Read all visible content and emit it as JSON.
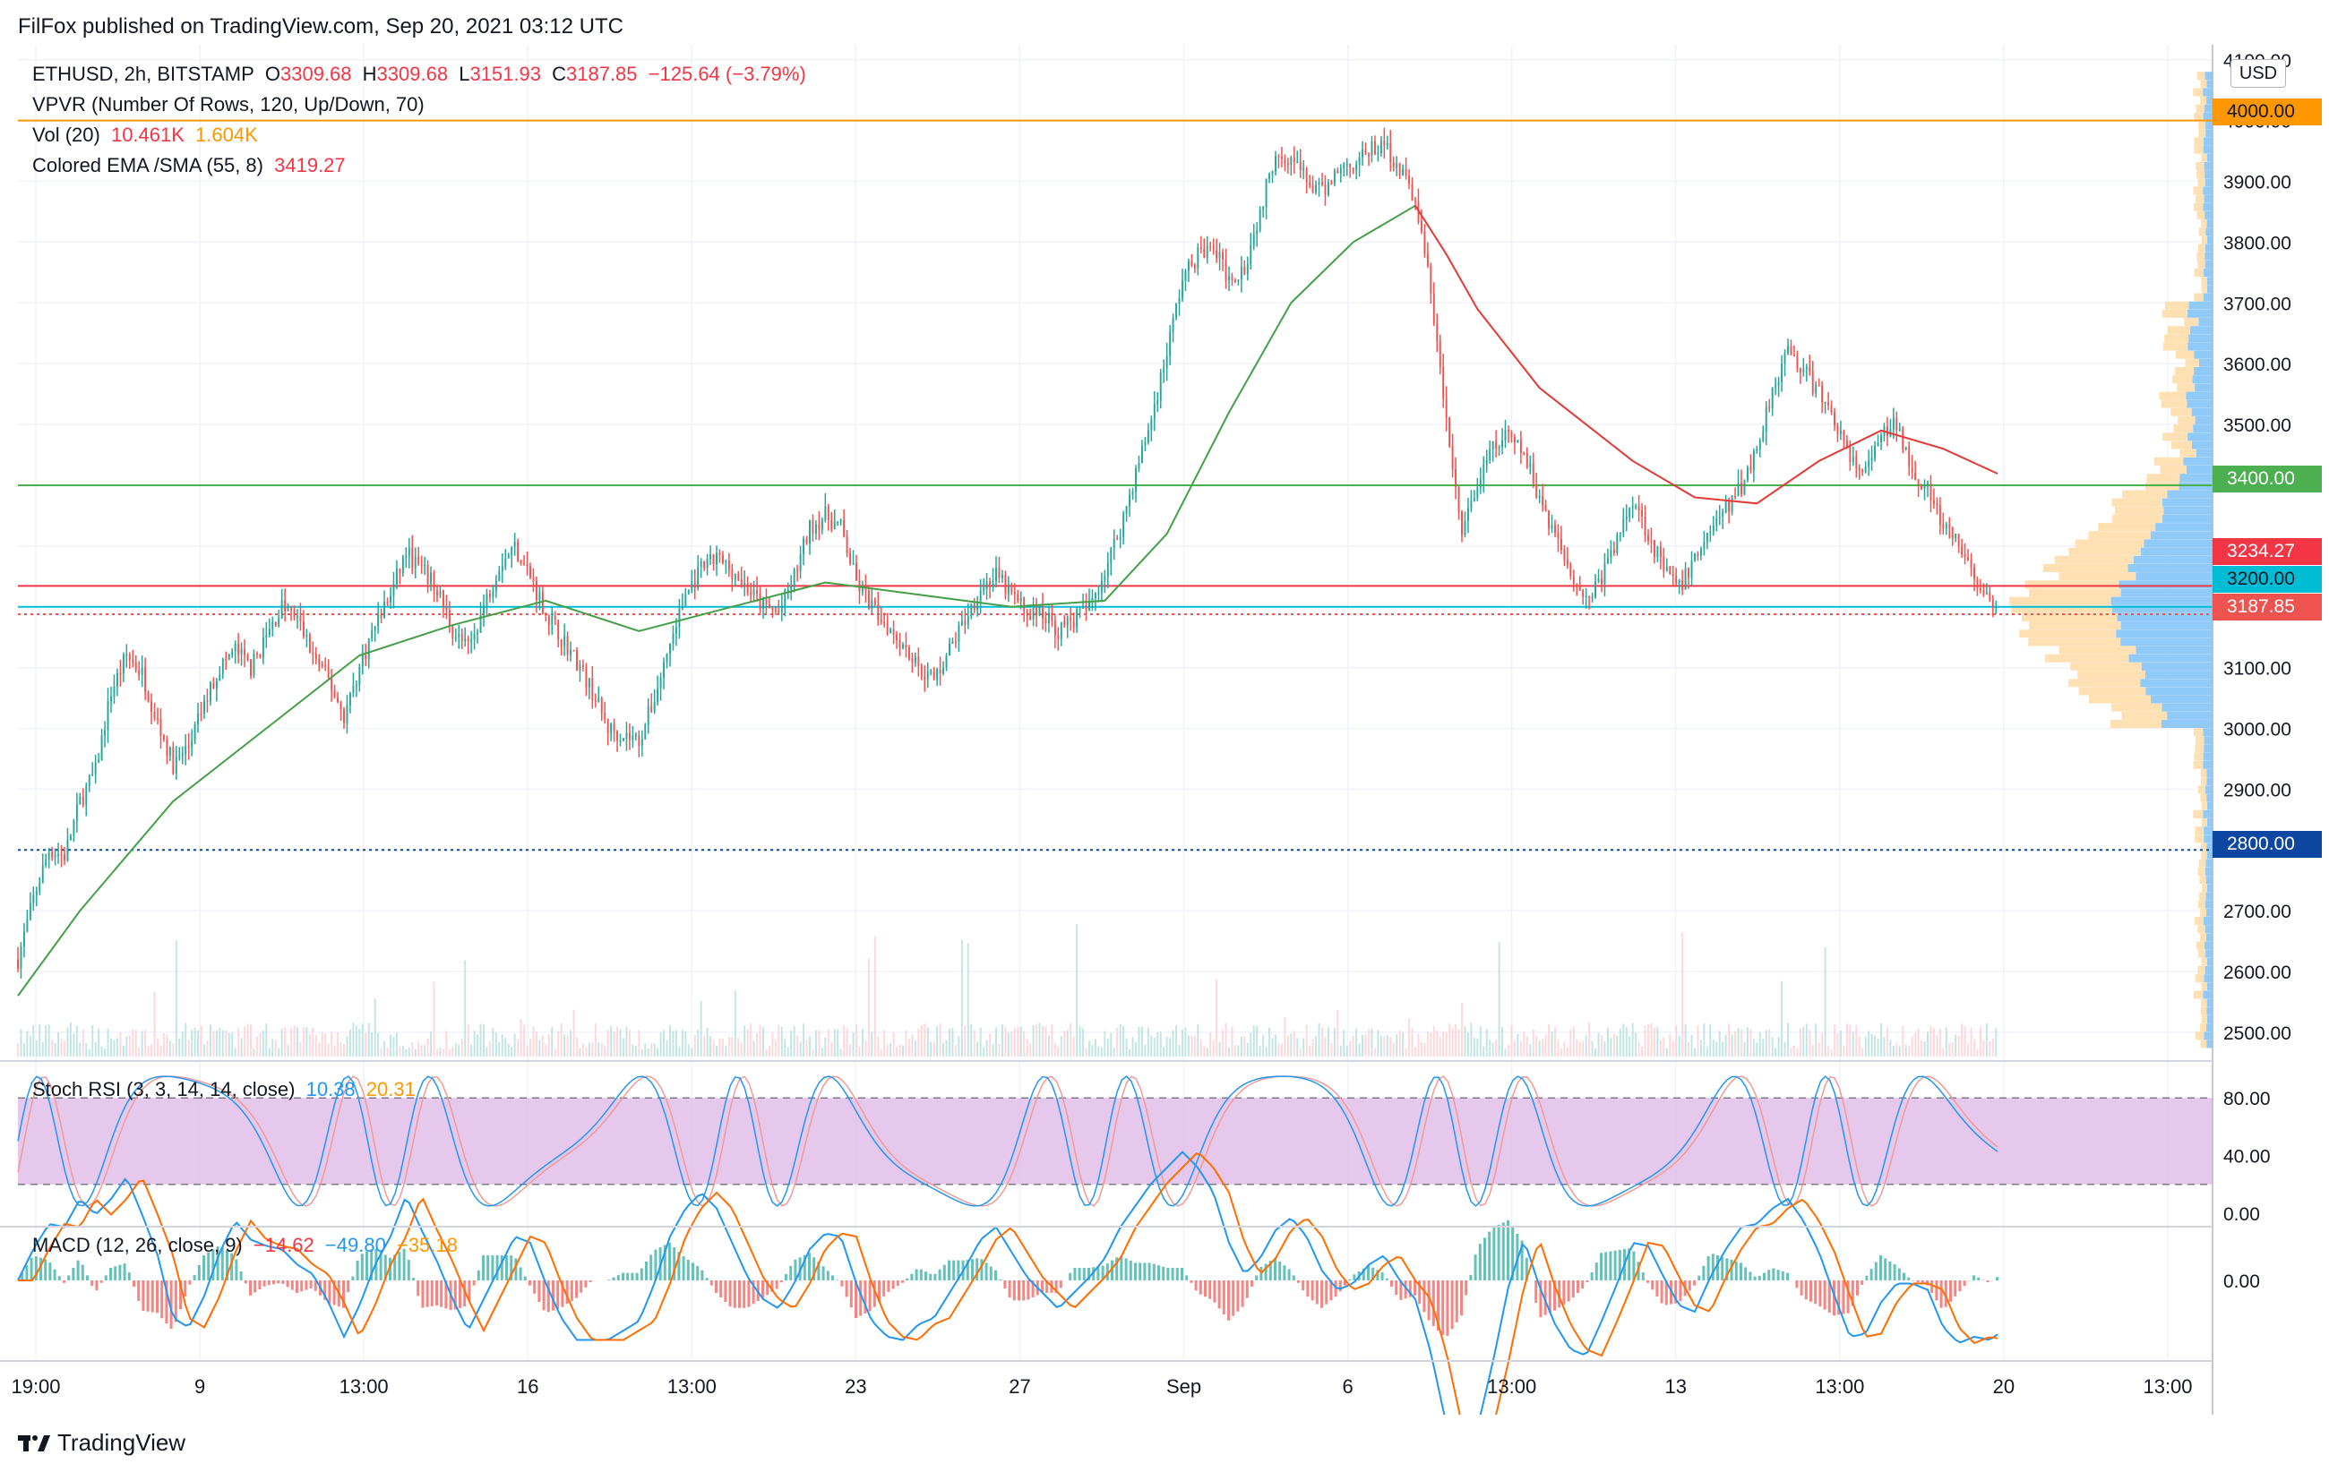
{
  "header": {
    "published": "FilFox published on TradingView.com, Sep 20, 2021 03:12 UTC"
  },
  "legend": {
    "symbol": "ETHUSD, 2h, BITSTAMP",
    "o_label": "O",
    "o_value": "3309.68",
    "h_label": "H",
    "h_value": "3309.68",
    "l_label": "L",
    "l_value": "3151.93",
    "c_label": "C",
    "c_value": "3187.85",
    "change": "−125.64 (−3.79%)",
    "vpvr": "VPVR (Number Of Rows, 120, Up/Down, 70)",
    "vol_label": "Vol (20)",
    "vol_value": "10.461K",
    "vol_ma": "1.604K",
    "ema_label": "Colored EMA /SMA (55, 8)",
    "ema_value": "3419.27",
    "stoch_label": "Stoch RSI (3, 3, 14, 14, close)",
    "stoch_k": "10.38",
    "stoch_d": "20.31",
    "macd_label": "MACD (12, 26, close, 9)",
    "macd_hist": "−14.62",
    "macd_line": "−49.80",
    "macd_signal": "−35.18"
  },
  "badges": {
    "usd": "USD",
    "level_4000": "4000.00",
    "level_3400": "3400.00",
    "sma_price": "3234.27",
    "level_3200": "3200.00",
    "last_price": "3187.85",
    "level_2800": "2800.00"
  },
  "footer": {
    "brand": "TradingView"
  },
  "colors": {
    "up": "#26a69a",
    "down": "#ef5350",
    "level_orange": "#ff9800",
    "level_green": "#4caf50",
    "level_red": "#f23645",
    "level_teal": "#00bcd4",
    "level_navy": "#0d47a1",
    "sma_green": "#43a047",
    "sma_red": "#e53935",
    "stoch_fill": "#e1bee7",
    "stoch_k": "#2196f3",
    "stoch_d": "#ef9a9a",
    "macd": "#2196f3",
    "signal": "#ff6d00"
  },
  "chart_data": {
    "type": "candlestick",
    "symbol": "ETHUSD",
    "timeframe": "2h",
    "exchange": "BITSTAMP",
    "price_axis": {
      "ticks": [
        "4100.00",
        "4000.00",
        "3900.00",
        "3800.00",
        "3700.00",
        "3600.00",
        "3500.00",
        "3400.00",
        "3300.00",
        "3200.00",
        "3100.00",
        "3000.00",
        "2900.00",
        "2800.00",
        "2700.00",
        "2600.00",
        "2500.00"
      ],
      "range": [
        2460,
        4110
      ]
    },
    "time_axis": {
      "labels": [
        "19:00",
        "9",
        "13:00",
        "16",
        "13:00",
        "23",
        "27",
        "Sep",
        "6",
        "13:00",
        "13",
        "13:00",
        "20",
        "13:00"
      ]
    },
    "close_path": [
      [
        0,
        2620
      ],
      [
        10,
        2720
      ],
      [
        20,
        2800
      ],
      [
        30,
        2790
      ],
      [
        40,
        2880
      ],
      [
        50,
        2930
      ],
      [
        60,
        3060
      ],
      [
        70,
        3120
      ],
      [
        80,
        3090
      ],
      [
        90,
        3010
      ],
      [
        100,
        2940
      ],
      [
        110,
        2970
      ],
      [
        120,
        3040
      ],
      [
        130,
        3100
      ],
      [
        140,
        3130
      ],
      [
        150,
        3100
      ],
      [
        160,
        3150
      ],
      [
        170,
        3200
      ],
      [
        180,
        3180
      ],
      [
        190,
        3120
      ],
      [
        200,
        3080
      ],
      [
        210,
        3020
      ],
      [
        220,
        3100
      ],
      [
        230,
        3170
      ],
      [
        240,
        3220
      ],
      [
        250,
        3290
      ],
      [
        260,
        3260
      ],
      [
        270,
        3230
      ],
      [
        280,
        3160
      ],
      [
        290,
        3130
      ],
      [
        300,
        3200
      ],
      [
        310,
        3270
      ],
      [
        320,
        3300
      ],
      [
        330,
        3250
      ],
      [
        340,
        3190
      ],
      [
        350,
        3150
      ],
      [
        360,
        3110
      ],
      [
        370,
        3060
      ],
      [
        380,
        3000
      ],
      [
        390,
        2990
      ],
      [
        400,
        2980
      ],
      [
        410,
        3050
      ],
      [
        420,
        3140
      ],
      [
        430,
        3220
      ],
      [
        440,
        3260
      ],
      [
        450,
        3280
      ],
      [
        460,
        3260
      ],
      [
        470,
        3230
      ],
      [
        480,
        3200
      ],
      [
        490,
        3190
      ],
      [
        500,
        3250
      ],
      [
        510,
        3330
      ],
      [
        520,
        3350
      ],
      [
        530,
        3330
      ],
      [
        540,
        3240
      ],
      [
        550,
        3200
      ],
      [
        560,
        3170
      ],
      [
        570,
        3140
      ],
      [
        580,
        3100
      ],
      [
        590,
        3080
      ],
      [
        600,
        3130
      ],
      [
        610,
        3180
      ],
      [
        620,
        3230
      ],
      [
        630,
        3250
      ],
      [
        640,
        3220
      ],
      [
        650,
        3190
      ],
      [
        660,
        3190
      ],
      [
        670,
        3160
      ],
      [
        680,
        3180
      ],
      [
        690,
        3200
      ],
      [
        700,
        3260
      ],
      [
        710,
        3330
      ],
      [
        720,
        3420
      ],
      [
        730,
        3510
      ],
      [
        740,
        3620
      ],
      [
        750,
        3740
      ],
      [
        760,
        3780
      ],
      [
        770,
        3790
      ],
      [
        780,
        3740
      ],
      [
        790,
        3760
      ],
      [
        800,
        3850
      ],
      [
        810,
        3950
      ],
      [
        820,
        3940
      ],
      [
        830,
        3900
      ],
      [
        840,
        3880
      ],
      [
        850,
        3920
      ],
      [
        860,
        3930
      ],
      [
        870,
        3950
      ],
      [
        880,
        3960
      ],
      [
        890,
        3920
      ],
      [
        900,
        3870
      ],
      [
        910,
        3720
      ],
      [
        920,
        3500
      ],
      [
        930,
        3320
      ],
      [
        940,
        3400
      ],
      [
        950,
        3460
      ],
      [
        960,
        3480
      ],
      [
        970,
        3450
      ],
      [
        980,
        3380
      ],
      [
        990,
        3320
      ],
      [
        1000,
        3260
      ],
      [
        1010,
        3210
      ],
      [
        1020,
        3250
      ],
      [
        1030,
        3310
      ],
      [
        1040,
        3380
      ],
      [
        1050,
        3320
      ],
      [
        1060,
        3260
      ],
      [
        1070,
        3230
      ],
      [
        1080,
        3280
      ],
      [
        1090,
        3330
      ],
      [
        1100,
        3360
      ],
      [
        1110,
        3400
      ],
      [
        1120,
        3460
      ],
      [
        1130,
        3560
      ],
      [
        1140,
        3620
      ],
      [
        1150,
        3590
      ],
      [
        1160,
        3550
      ],
      [
        1170,
        3510
      ],
      [
        1180,
        3440
      ],
      [
        1190,
        3420
      ],
      [
        1200,
        3480
      ],
      [
        1210,
        3500
      ],
      [
        1220,
        3430
      ],
      [
        1230,
        3390
      ],
      [
        1240,
        3330
      ],
      [
        1250,
        3300
      ],
      [
        1260,
        3250
      ],
      [
        1270,
        3200
      ],
      [
        1275,
        3188
      ]
    ],
    "last_candle": {
      "open": 3309.68,
      "high": 3309.68,
      "low": 3151.93,
      "close": 3187.85,
      "change": -125.64,
      "change_pct": -3.79
    },
    "sma_path": [
      [
        0,
        2560
      ],
      [
        40,
        2700
      ],
      [
        100,
        2880
      ],
      [
        160,
        3000
      ],
      [
        220,
        3120
      ],
      [
        280,
        3170
      ],
      [
        340,
        3210
      ],
      [
        400,
        3160
      ],
      [
        460,
        3200
      ],
      [
        520,
        3240
      ],
      [
        580,
        3220
      ],
      [
        640,
        3200
      ],
      [
        700,
        3210
      ],
      [
        740,
        3320
      ],
      [
        780,
        3520
      ],
      [
        820,
        3700
      ],
      [
        860,
        3800
      ],
      [
        900,
        3860
      ],
      [
        920,
        3780
      ],
      [
        940,
        3690
      ],
      [
        980,
        3560
      ],
      [
        1040,
        3440
      ],
      [
        1080,
        3380
      ],
      [
        1120,
        3370
      ],
      [
        1160,
        3440
      ],
      [
        1200,
        3490
      ],
      [
        1240,
        3460
      ],
      [
        1275,
        3419
      ]
    ],
    "sma_value": 3419.27,
    "horizontal_levels": [
      {
        "price": 4000,
        "color": "#ff9800",
        "style": "solid"
      },
      {
        "price": 3400,
        "color": "#4caf50",
        "style": "solid"
      },
      {
        "price": 3234.27,
        "color": "#f23645",
        "style": "solid"
      },
      {
        "price": 3200,
        "color": "#00bcd4",
        "style": "solid"
      },
      {
        "price": 3187.85,
        "color": "#ef5350",
        "style": "dotted"
      },
      {
        "price": 2800,
        "color": "#0d47a1",
        "style": "dotted"
      }
    ],
    "volume": {
      "last": "10.461K",
      "ma": "1.604K"
    },
    "stoch_rsi": {
      "k": 10.38,
      "d": 20.31,
      "upper": 80,
      "lower": 20,
      "ticks": [
        "80.00",
        "40.00",
        "0.00"
      ],
      "range": [
        0,
        100
      ]
    },
    "macd": {
      "histogram": -14.62,
      "macd": -49.8,
      "signal": -35.18,
      "ticks": [
        "0.00"
      ]
    }
  }
}
